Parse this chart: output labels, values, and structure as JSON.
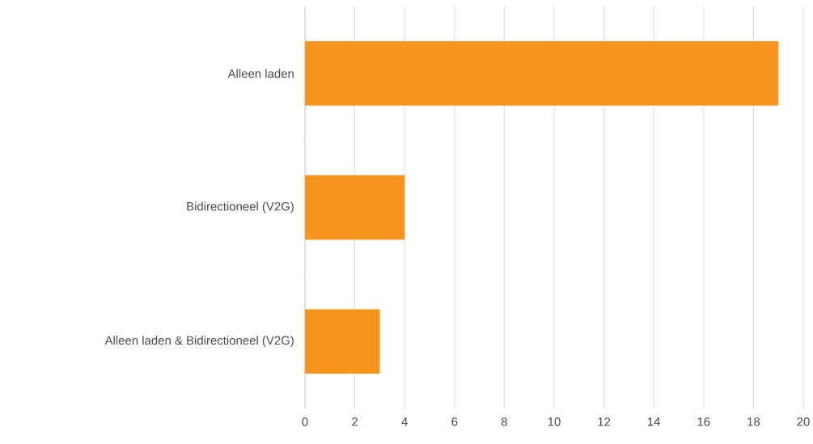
{
  "chart_data": {
    "type": "bar",
    "orientation": "horizontal",
    "categories": [
      "Alleen laden",
      "Bidirectioneel (V2G)",
      "Alleen laden & Bidirectioneel (V2G)"
    ],
    "values": [
      19,
      4,
      3
    ],
    "color": "#f7941d",
    "xlim": [
      0,
      20
    ],
    "xticks": [
      0,
      2,
      4,
      6,
      8,
      10,
      12,
      14,
      16,
      18,
      20
    ],
    "grid": "x"
  }
}
